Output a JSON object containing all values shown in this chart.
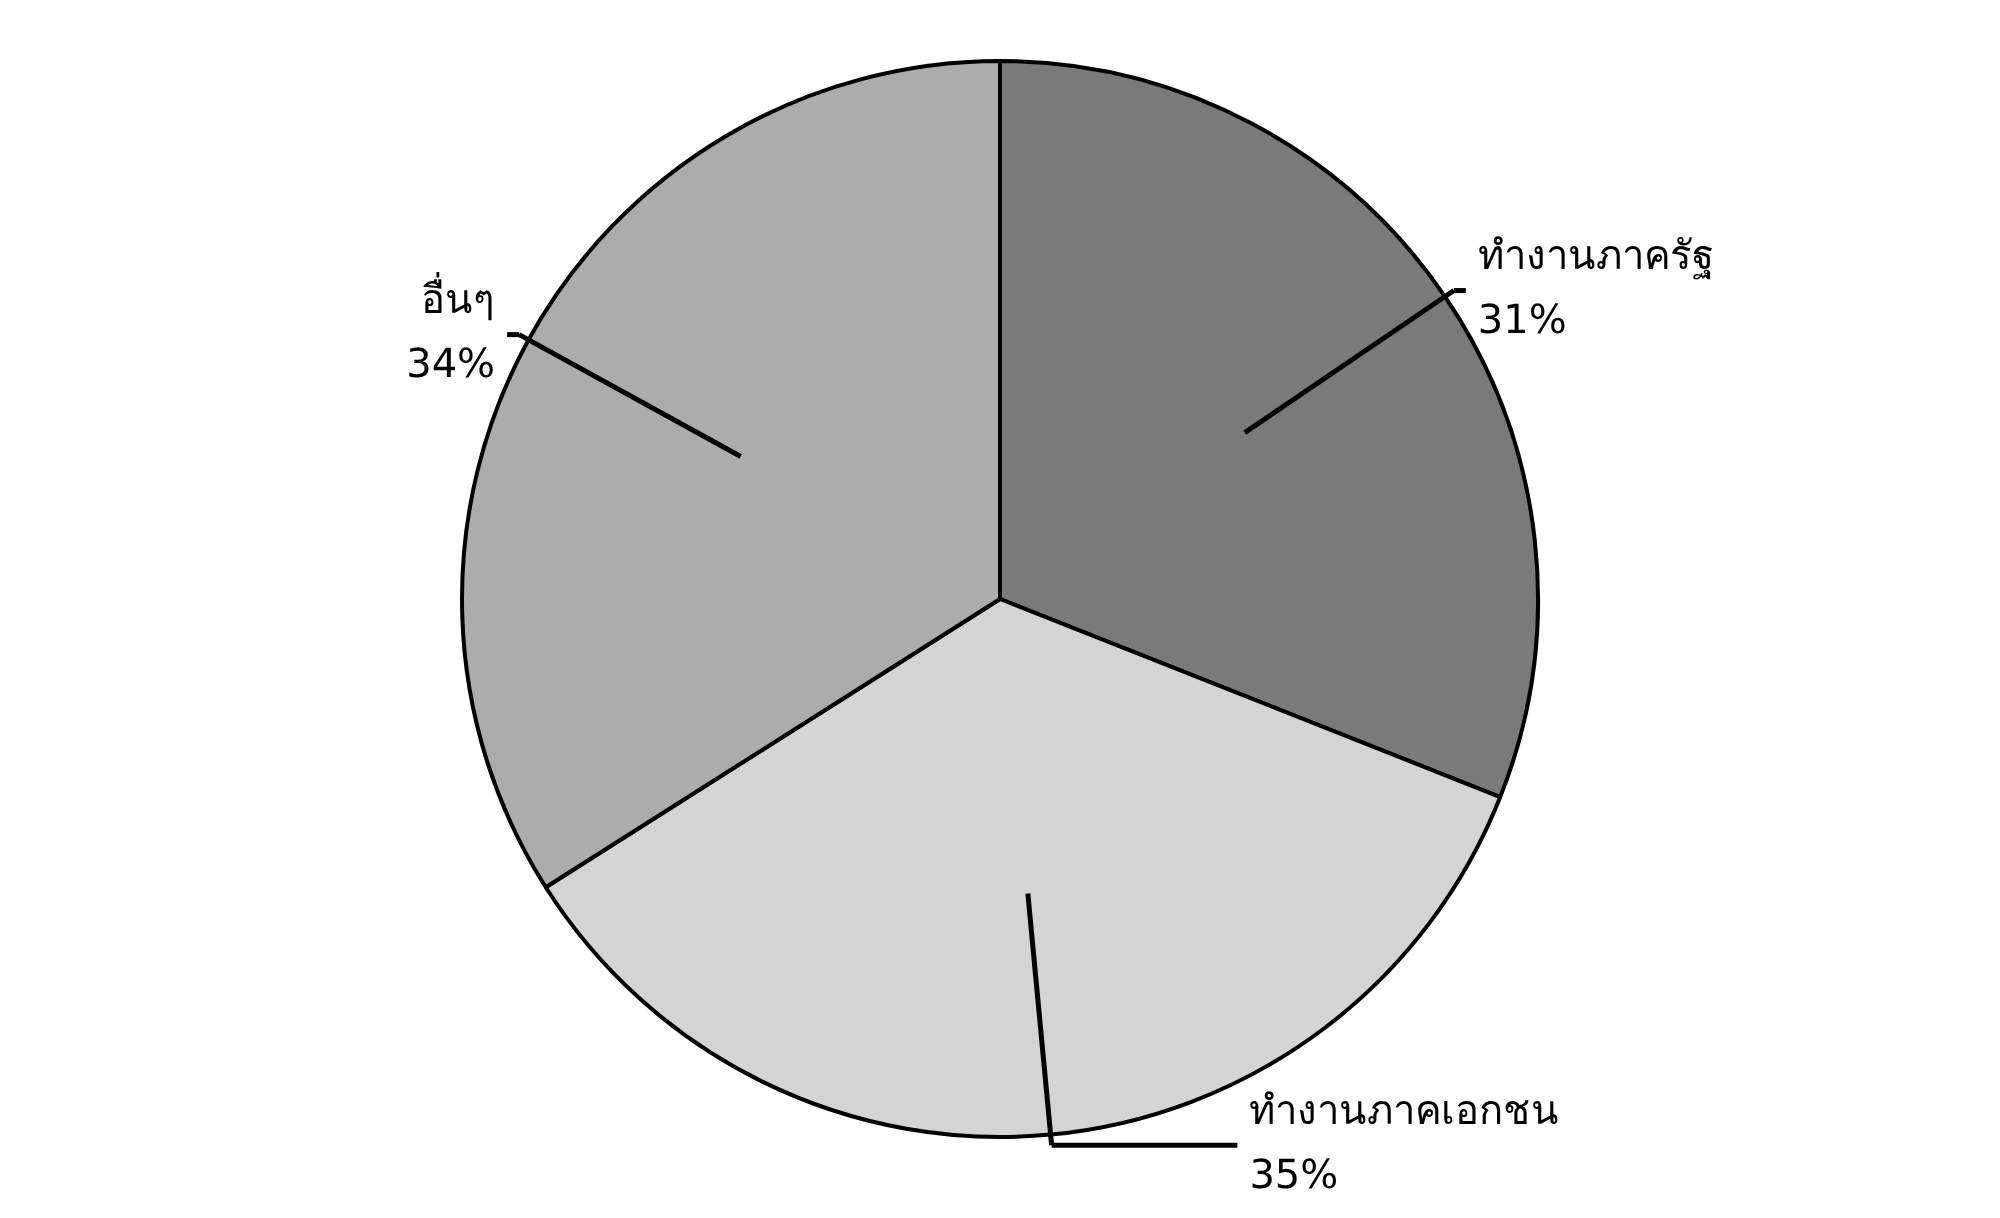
{
  "chart_data": {
    "type": "pie",
    "categories": [
      "ทำงานภาครัฐ",
      "ทำงานภาคเอกชน",
      "อื่นๆ"
    ],
    "values": [
      31,
      35,
      34
    ],
    "colors": [
      "#7a7a7a",
      "#d4d4d4",
      "#acacac"
    ],
    "value_labels": [
      "31%",
      "35%",
      "34%"
    ],
    "legend": false
  }
}
